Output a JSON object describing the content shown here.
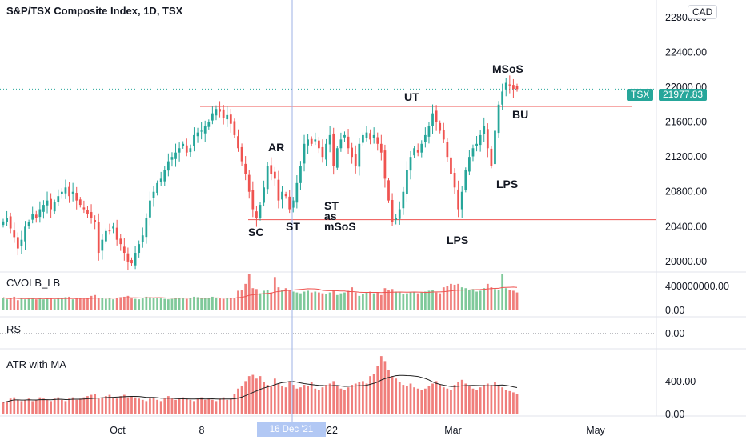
{
  "header": {
    "title": "S&P/TSX Composite Index, 1D, TSX",
    "currency": "CAD"
  },
  "price_badges": {
    "symbol": "TSX",
    "last": "21977.83"
  },
  "crosshair_date": "16 Dec '21",
  "pane_labels": {
    "volume": "CVOLB_LB",
    "rs": "RS",
    "atr": "ATR with MA"
  },
  "annotations": [
    "SC",
    "ST",
    "AR",
    "ST",
    "as",
    "mSoS",
    "UT",
    "LPS",
    "LPS",
    "MSoS",
    "BU"
  ],
  "colors": {
    "up": "#26a69a",
    "down": "#ef5350",
    "up_volume": "#7fc99a",
    "down_volume": "#f07e7b",
    "level_line": "#ef5350",
    "crosshair": "#9db2e6",
    "ma_line": "#222222"
  },
  "chart_data": [
    {
      "type": "candlestick",
      "title": "S&P/TSX Composite Index, 1D, TSX",
      "x_ticks": [
        "Oct",
        "8",
        "2022",
        "Mar",
        "May"
      ],
      "y_ticks": [
        "20000.00",
        "20400.00",
        "20800.00",
        "21200.00",
        "21600.00",
        "22000.00",
        "22400.00",
        "22800.00"
      ],
      "ylim": [
        19880,
        23000
      ],
      "last_price": 21977.83,
      "horizontal_levels": [
        21780,
        20480
      ],
      "close": [
        20460,
        20500,
        20380,
        20280,
        20150,
        20250,
        20400,
        20450,
        20550,
        20500,
        20600,
        20650,
        20700,
        20600,
        20680,
        20750,
        20800,
        20850,
        20750,
        20800,
        20700,
        20650,
        20600,
        20550,
        20500,
        20450,
        20100,
        20250,
        20350,
        20350,
        20400,
        20250,
        20200,
        20100,
        20000,
        19980,
        20100,
        20200,
        20300,
        20500,
        20700,
        20800,
        20900,
        20950,
        21050,
        21150,
        21200,
        21250,
        21300,
        21350,
        21250,
        21300,
        21450,
        21480,
        21500,
        21550,
        21600,
        21700,
        21750,
        21720,
        21650,
        21680,
        21580,
        21450,
        21300,
        21150,
        21000,
        20800,
        20600,
        20500,
        20650,
        20850,
        21100,
        21000,
        20950,
        20700,
        20800,
        20750,
        20600,
        20700,
        20900,
        21100,
        21350,
        21400,
        21350,
        21400,
        21300,
        21200,
        21350,
        21450,
        21100,
        21300,
        21400,
        21450,
        21300,
        21200,
        21100,
        21350,
        21450,
        21480,
        21400,
        21450,
        21350,
        21250,
        20950,
        20700,
        20450,
        20500,
        20600,
        20800,
        21050,
        21200,
        21300,
        21250,
        21350,
        21450,
        21550,
        21700,
        21600,
        21500,
        21400,
        21200,
        21000,
        20850,
        20600,
        20800,
        21050,
        21200,
        21300,
        21350,
        21450,
        21550,
        21300,
        21100,
        21500,
        21800,
        21950,
        22050,
        22020,
        21980,
        21978
      ],
      "volume": [
        140,
        120,
        130,
        150,
        110,
        130,
        120,
        125,
        140,
        120,
        130,
        120,
        125,
        140,
        120,
        135,
        130,
        145,
        150,
        120,
        130,
        140,
        125,
        130,
        160,
        170,
        130,
        140,
        125,
        130,
        120,
        135,
        145,
        150,
        160,
        130,
        125,
        120,
        130,
        150,
        145,
        140,
        135,
        130,
        125,
        120,
        125,
        130,
        140,
        130,
        125,
        140,
        150,
        145,
        130,
        140,
        135,
        150,
        140,
        130,
        125,
        130,
        135,
        130,
        220,
        230,
        300,
        420,
        250,
        240,
        190,
        220,
        230,
        200,
        380,
        260,
        230,
        250,
        230,
        210,
        200,
        190,
        210,
        220,
        200,
        210,
        200,
        190,
        180,
        200,
        230,
        170,
        190,
        200,
        220,
        260,
        200,
        160,
        180,
        200,
        210,
        190,
        200,
        170,
        250,
        230,
        240,
        210,
        200,
        180,
        190,
        200,
        210,
        190,
        200,
        210,
        220,
        230,
        200,
        190,
        260,
        280,
        300,
        290,
        300,
        260,
        250,
        230,
        240,
        210,
        220,
        250,
        300,
        260,
        240,
        230,
        420,
        250,
        230,
        220,
        200
      ],
      "atr": [
        90,
        100,
        120,
        130,
        110,
        100,
        110,
        120,
        100,
        110,
        130,
        120,
        110,
        100,
        120,
        130,
        110,
        100,
        120,
        130,
        110,
        120,
        130,
        140,
        150,
        160,
        120,
        130,
        140,
        150,
        130,
        120,
        140,
        150,
        130,
        140,
        130,
        120,
        110,
        100,
        120,
        130,
        110,
        100,
        120,
        140,
        120,
        110,
        120,
        130,
        120,
        110,
        100,
        120,
        130,
        110,
        120,
        110,
        100,
        120,
        130,
        110,
        120,
        160,
        200,
        220,
        260,
        300,
        310,
        280,
        300,
        250,
        230,
        220,
        280,
        240,
        220,
        210,
        260,
        230,
        200,
        210,
        230,
        220,
        250,
        200,
        190,
        210,
        230,
        240,
        260,
        220,
        200,
        190,
        210,
        230,
        240,
        250,
        260,
        240,
        300,
        320,
        380,
        460,
        420,
        350,
        300,
        280,
        250,
        230,
        220,
        240,
        210,
        200,
        190,
        200,
        220,
        240,
        260,
        230,
        210,
        200,
        190,
        230,
        250,
        270,
        240,
        220,
        200,
        190,
        210,
        230,
        240,
        230,
        250,
        230,
        210,
        190,
        180,
        170,
        160
      ],
      "rs": [],
      "volume_y_ticks": [
        "400000000.00",
        "0.00"
      ],
      "rs_y_ticks": [
        "0.00"
      ],
      "atr_y_ticks": [
        "400.00",
        "0.00"
      ]
    }
  ]
}
